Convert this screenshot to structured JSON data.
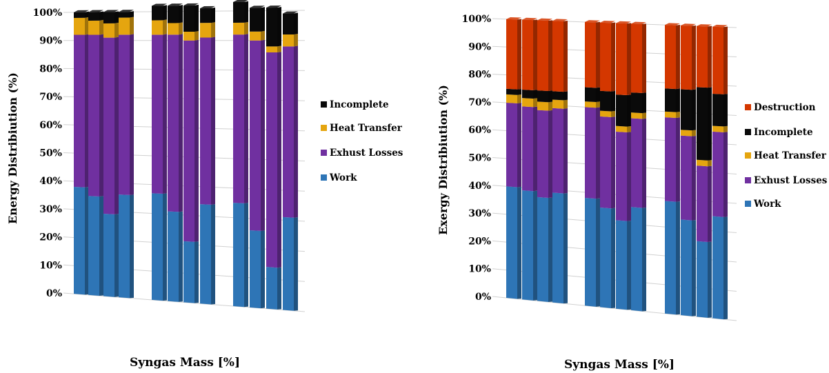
{
  "colors": {
    "work": "#2E75B6",
    "exhaust": "#7030A0",
    "heat": "#E5A50F",
    "incomplete": "#0A0A0A",
    "destruction": "#D43700"
  },
  "chart_data": [
    {
      "type": "bar",
      "stacked": true,
      "title": "",
      "xlabel": "Syngas Mass [%]",
      "ylabel": "Energy Distribiution (%)",
      "ylim": [
        0,
        100
      ],
      "yticks": [
        "0%",
        "10%",
        "20%",
        "30%",
        "40%",
        "50%",
        "60%",
        "70%",
        "80%",
        "90%",
        "100%"
      ],
      "grid": true,
      "legend_position": "right",
      "groups": [
        4,
        4,
        4
      ],
      "legend": [
        "Incomplete",
        "Heat Transfer",
        "Exhust Losses",
        "Work"
      ],
      "series": [
        {
          "name": "Work",
          "color_key": "work",
          "values": [
            38,
            35,
            29,
            36,
            37,
            31,
            21,
            34,
            35,
            26,
            14,
            31
          ]
        },
        {
          "name": "Exhust Losses",
          "color_key": "exhaust",
          "values": [
            54,
            57,
            62,
            56,
            55,
            61,
            69,
            57,
            57,
            64,
            72,
            57
          ]
        },
        {
          "name": "Heat Transfer",
          "color_key": "heat",
          "values": [
            6,
            5,
            5,
            6,
            5,
            4,
            3,
            5,
            4,
            3,
            2,
            4
          ]
        },
        {
          "name": "Incomplete",
          "color_key": "incomplete",
          "values": [
            2,
            3,
            4,
            2,
            5,
            6,
            9,
            5,
            7,
            8,
            13,
            7
          ]
        }
      ]
    },
    {
      "type": "bar",
      "stacked": true,
      "title": "",
      "xlabel": "Syngas Mass [%]",
      "ylabel": "Exergy Distribiution (%)",
      "ylim": [
        0,
        100
      ],
      "yticks": [
        "0%",
        "10%",
        "20%",
        "30%",
        "40%",
        "50%",
        "60%",
        "70%",
        "80%",
        "90%",
        "100%"
      ],
      "grid": true,
      "legend_position": "right",
      "groups": [
        4,
        4,
        4
      ],
      "legend": [
        "Destruction",
        "Incomplete",
        "Heat Transfer",
        "Exhust Losses",
        "Work"
      ],
      "series": [
        {
          "name": "Work",
          "color_key": "work",
          "values": [
            40,
            39,
            37,
            39,
            38,
            35,
            31,
            36,
            39,
            33,
            26,
            35
          ]
        },
        {
          "name": "Exhust Losses",
          "color_key": "exhaust",
          "values": [
            30,
            30,
            31,
            30,
            32,
            32,
            31,
            31,
            29,
            29,
            26,
            29
          ]
        },
        {
          "name": "Heat Transfer",
          "color_key": "heat",
          "values": [
            3,
            3,
            3,
            3,
            2,
            2,
            2,
            2,
            2,
            2,
            2,
            2
          ]
        },
        {
          "name": "Incomplete",
          "color_key": "incomplete",
          "values": [
            2,
            3,
            4,
            3,
            5,
            7,
            11,
            7,
            8,
            14,
            25,
            11
          ]
        },
        {
          "name": "Destruction",
          "color_key": "destruction",
          "values": [
            25,
            25,
            25,
            25,
            23,
            24,
            25,
            24,
            22,
            22,
            21,
            23
          ]
        }
      ]
    }
  ]
}
